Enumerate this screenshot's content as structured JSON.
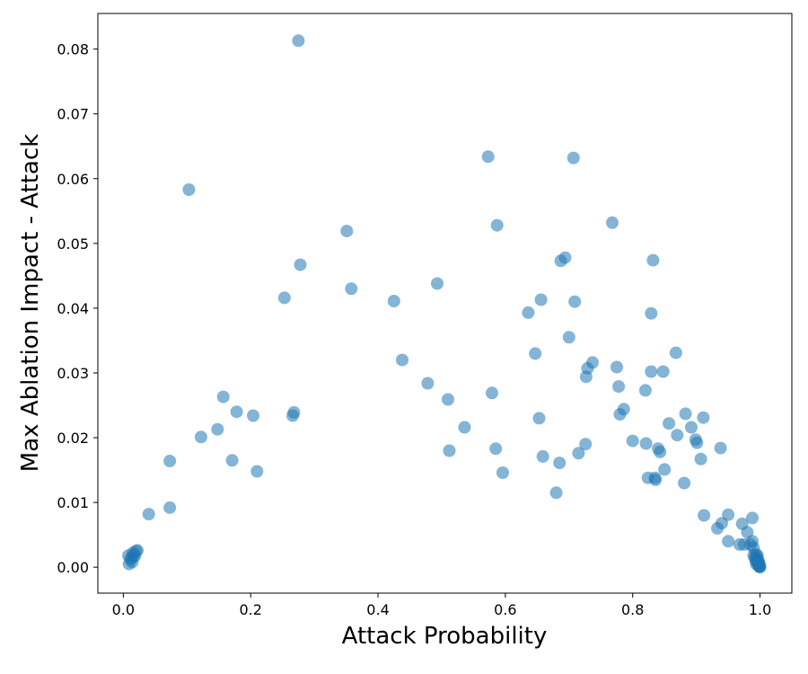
{
  "chart_data": {
    "type": "scatter",
    "title": "",
    "xlabel": "Attack Probability",
    "ylabel": "Max Ablation Impact - Attack",
    "xlim": [
      -0.04,
      1.05
    ],
    "ylim": [
      -0.004,
      0.0855
    ],
    "xticks": [
      0.0,
      0.2,
      0.4,
      0.6,
      0.8,
      1.0
    ],
    "xtick_labels": [
      "0.0",
      "0.2",
      "0.4",
      "0.6",
      "0.8",
      "1.0"
    ],
    "yticks": [
      0.0,
      0.01,
      0.02,
      0.03,
      0.04,
      0.05,
      0.06,
      0.07,
      0.08
    ],
    "ytick_labels": [
      "0.00",
      "0.01",
      "0.02",
      "0.03",
      "0.04",
      "0.05",
      "0.06",
      "0.07",
      "0.08"
    ],
    "grid": false,
    "color": "#1f77b4",
    "series": [
      {
        "points": [
          [
            0.008,
            0.0018
          ],
          [
            0.009,
            0.0005
          ],
          [
            0.011,
            0.0012
          ],
          [
            0.013,
            0.0015
          ],
          [
            0.015,
            0.0022
          ],
          [
            0.017,
            0.0019
          ],
          [
            0.02,
            0.0025
          ],
          [
            0.022,
            0.0026
          ],
          [
            0.014,
            0.0008
          ],
          [
            0.018,
            0.0017
          ],
          [
            0.04,
            0.0082
          ],
          [
            0.073,
            0.0164
          ],
          [
            0.073,
            0.0092
          ],
          [
            0.103,
            0.0583
          ],
          [
            0.122,
            0.0201
          ],
          [
            0.148,
            0.0213
          ],
          [
            0.157,
            0.0263
          ],
          [
            0.171,
            0.0165
          ],
          [
            0.178,
            0.024
          ],
          [
            0.204,
            0.0234
          ],
          [
            0.21,
            0.0148
          ],
          [
            0.253,
            0.0416
          ],
          [
            0.266,
            0.0234
          ],
          [
            0.268,
            0.0239
          ],
          [
            0.275,
            0.0813
          ],
          [
            0.278,
            0.0467
          ],
          [
            0.351,
            0.0519
          ],
          [
            0.358,
            0.043
          ],
          [
            0.425,
            0.0411
          ],
          [
            0.438,
            0.032
          ],
          [
            0.478,
            0.0284
          ],
          [
            0.493,
            0.0438
          ],
          [
            0.51,
            0.0259
          ],
          [
            0.512,
            0.018
          ],
          [
            0.536,
            0.0216
          ],
          [
            0.573,
            0.0634
          ],
          [
            0.579,
            0.0269
          ],
          [
            0.585,
            0.0183
          ],
          [
            0.587,
            0.0528
          ],
          [
            0.596,
            0.0146
          ],
          [
            0.636,
            0.0393
          ],
          [
            0.647,
            0.033
          ],
          [
            0.653,
            0.023
          ],
          [
            0.656,
            0.0413
          ],
          [
            0.659,
            0.0171
          ],
          [
            0.68,
            0.0115
          ],
          [
            0.685,
            0.0161
          ],
          [
            0.687,
            0.0473
          ],
          [
            0.694,
            0.0478
          ],
          [
            0.7,
            0.0355
          ],
          [
            0.707,
            0.0632
          ],
          [
            0.709,
            0.041
          ],
          [
            0.715,
            0.0176
          ],
          [
            0.726,
            0.019
          ],
          [
            0.727,
            0.0294
          ],
          [
            0.729,
            0.0307
          ],
          [
            0.737,
            0.0316
          ],
          [
            0.768,
            0.0532
          ],
          [
            0.775,
            0.0309
          ],
          [
            0.778,
            0.0279
          ],
          [
            0.78,
            0.0236
          ],
          [
            0.786,
            0.0244
          ],
          [
            0.8,
            0.0195
          ],
          [
            0.82,
            0.0273
          ],
          [
            0.821,
            0.0191
          ],
          [
            0.824,
            0.0138
          ],
          [
            0.829,
            0.0392
          ],
          [
            0.829,
            0.0302
          ],
          [
            0.832,
            0.0474
          ],
          [
            0.835,
            0.0138
          ],
          [
            0.836,
            0.0135
          ],
          [
            0.84,
            0.0183
          ],
          [
            0.843,
            0.0178
          ],
          [
            0.848,
            0.0302
          ],
          [
            0.85,
            0.0151
          ],
          [
            0.857,
            0.0222
          ],
          [
            0.868,
            0.0331
          ],
          [
            0.87,
            0.0204
          ],
          [
            0.881,
            0.013
          ],
          [
            0.883,
            0.0237
          ],
          [
            0.892,
            0.0216
          ],
          [
            0.899,
            0.0197
          ],
          [
            0.901,
            0.0192
          ],
          [
            0.907,
            0.0167
          ],
          [
            0.911,
            0.0231
          ],
          [
            0.912,
            0.008
          ],
          [
            0.933,
            0.006
          ],
          [
            0.938,
            0.0184
          ],
          [
            0.94,
            0.0068
          ],
          [
            0.95,
            0.0081
          ],
          [
            0.95,
            0.004
          ],
          [
            0.968,
            0.0035
          ],
          [
            0.972,
            0.0067
          ],
          [
            0.975,
            0.0035
          ],
          [
            0.98,
            0.0054
          ],
          [
            0.985,
            0.0035
          ],
          [
            0.988,
            0.0076
          ],
          [
            0.988,
            0.004
          ],
          [
            0.99,
            0.003
          ],
          [
            0.99,
            0.0018
          ],
          [
            0.992,
            0.0015
          ],
          [
            0.993,
            0.0011
          ],
          [
            0.994,
            0.002
          ],
          [
            0.995,
            0.0008
          ],
          [
            0.996,
            0.0014
          ],
          [
            0.997,
            0.0006
          ],
          [
            0.997,
            0.001
          ],
          [
            0.998,
            0.0004
          ],
          [
            0.998,
            0.0002
          ],
          [
            0.999,
            0.0003
          ],
          [
            0.999,
            0.0007
          ],
          [
            1.0,
            0.0
          ],
          [
            1.0,
            0.0001
          ],
          [
            0.996,
            0.0018
          ],
          [
            0.994,
            0.0005
          ],
          [
            0.999,
            0.0001
          ]
        ]
      }
    ]
  }
}
